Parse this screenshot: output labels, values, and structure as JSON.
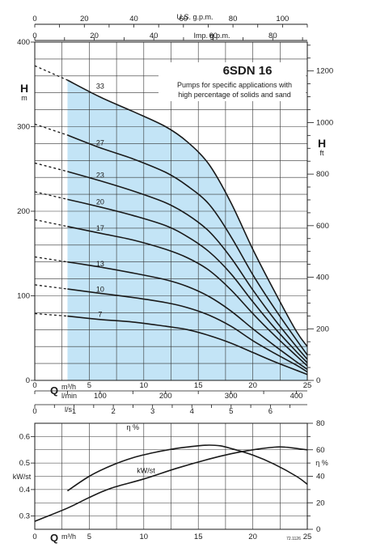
{
  "chart_data": [
    {
      "type": "line",
      "title": "6SDN 16",
      "subtitle_lines": [
        "Pumps for specific applications with",
        "high percentage of solids and sand"
      ],
      "left_axis": {
        "label": "H",
        "unit": "m",
        "range": [
          0,
          400
        ],
        "ticks": [
          0,
          100,
          200,
          300,
          400
        ]
      },
      "right_axis": {
        "label": "H",
        "unit": "ft",
        "range": [
          0,
          1312
        ],
        "ticks": [
          0,
          200,
          400,
          600,
          800,
          1000,
          1200
        ]
      },
      "x_axis": {
        "label": "Q",
        "unit": "m³/h",
        "range": [
          0,
          25
        ],
        "ticks": [
          0,
          5,
          10,
          15,
          20,
          25
        ]
      },
      "top_axis_usgpm": {
        "label": "U.S. g.p.m.",
        "range": [
          0,
          110
        ],
        "ticks": [
          0,
          20,
          40,
          60,
          80,
          100
        ]
      },
      "top_axis_impgpm": {
        "label": "Imp. g.p.m.",
        "range": [
          0,
          91.6
        ],
        "ticks": [
          0,
          20,
          40,
          60,
          80
        ]
      },
      "bottom_axis_lmin": {
        "unit": "l/min",
        "range": [
          0,
          416.7
        ],
        "ticks": [
          0,
          100,
          200,
          300,
          400
        ]
      },
      "bottom_axis_ls": {
        "unit": "l/s",
        "range": [
          0,
          6.94
        ],
        "ticks": [
          0,
          1,
          2,
          3,
          4,
          5,
          6
        ]
      },
      "operating_range": [
        3,
        25
      ],
      "series": [
        {
          "name": "33",
          "label_at": [
            6,
            343
          ],
          "dashed": [
            [
              0,
              372
            ],
            [
              3,
              355
            ]
          ],
          "points": [
            [
              3,
              355
            ],
            [
              6,
              335
            ],
            [
              9,
              318
            ],
            [
              12,
              300
            ],
            [
              14,
              282
            ],
            [
              16,
              255
            ],
            [
              18,
              210
            ],
            [
              20,
              155
            ],
            [
              22,
              105
            ],
            [
              24,
              58
            ],
            [
              25,
              40
            ]
          ]
        },
        {
          "name": "27",
          "label_at": [
            6,
            276
          ],
          "dashed": [
            [
              0,
              303
            ],
            [
              3,
              290
            ]
          ],
          "points": [
            [
              3,
              290
            ],
            [
              6,
              275
            ],
            [
              9,
              262
            ],
            [
              12,
              246
            ],
            [
              14,
              230
            ],
            [
              16,
              208
            ],
            [
              18,
              170
            ],
            [
              20,
              125
            ],
            [
              22,
              85
            ],
            [
              24,
              48
            ],
            [
              25,
              30
            ]
          ]
        },
        {
          "name": "23",
          "label_at": [
            6,
            238
          ],
          "dashed": [
            [
              0,
              257
            ],
            [
              3,
              247
            ]
          ],
          "points": [
            [
              3,
              247
            ],
            [
              6,
              236
            ],
            [
              9,
              224
            ],
            [
              12,
              210
            ],
            [
              14,
              196
            ],
            [
              16,
              176
            ],
            [
              18,
              145
            ],
            [
              20,
              107
            ],
            [
              22,
              72
            ],
            [
              24,
              40
            ],
            [
              25,
              25
            ]
          ]
        },
        {
          "name": "20",
          "label_at": [
            6,
            206
          ],
          "dashed": [
            [
              0,
              223
            ],
            [
              3,
              214
            ]
          ],
          "points": [
            [
              3,
              214
            ],
            [
              6,
              205
            ],
            [
              9,
              195
            ],
            [
              12,
              183
            ],
            [
              14,
              170
            ],
            [
              16,
              152
            ],
            [
              18,
              126
            ],
            [
              20,
              93
            ],
            [
              22,
              62
            ],
            [
              24,
              34
            ],
            [
              25,
              21
            ]
          ]
        },
        {
          "name": "17",
          "label_at": [
            6,
            175
          ],
          "dashed": [
            [
              0,
              190
            ],
            [
              3,
              182
            ]
          ],
          "points": [
            [
              3,
              182
            ],
            [
              6,
              174
            ],
            [
              9,
              166
            ],
            [
              12,
              155
            ],
            [
              14,
              145
            ],
            [
              16,
              130
            ],
            [
              18,
              107
            ],
            [
              20,
              79
            ],
            [
              22,
              53
            ],
            [
              24,
              29
            ],
            [
              25,
              17
            ]
          ]
        },
        {
          "name": "13",
          "label_at": [
            6,
            133
          ],
          "dashed": [
            [
              0,
              146
            ],
            [
              3,
              140
            ]
          ],
          "points": [
            [
              3,
              140
            ],
            [
              6,
              134
            ],
            [
              9,
              127
            ],
            [
              12,
              119
            ],
            [
              14,
              111
            ],
            [
              16,
              99
            ],
            [
              18,
              82
            ],
            [
              20,
              61
            ],
            [
              22,
              41
            ],
            [
              24,
              22
            ],
            [
              25,
              13
            ]
          ]
        },
        {
          "name": "10",
          "label_at": [
            6,
            103
          ],
          "dashed": [
            [
              0,
              113
            ],
            [
              3,
              108
            ]
          ],
          "points": [
            [
              3,
              108
            ],
            [
              6,
              103
            ],
            [
              9,
              98
            ],
            [
              12,
              92
            ],
            [
              14,
              86
            ],
            [
              16,
              77
            ],
            [
              18,
              64
            ],
            [
              20,
              47
            ],
            [
              22,
              32
            ],
            [
              24,
              18
            ],
            [
              25,
              10
            ]
          ]
        },
        {
          "name": "7",
          "label_at": [
            6,
            73
          ],
          "dashed": [
            [
              0,
              79
            ],
            [
              3,
              76
            ]
          ],
          "points": [
            [
              3,
              76
            ],
            [
              6,
              72
            ],
            [
              9,
              69
            ],
            [
              12,
              64
            ],
            [
              14,
              60
            ],
            [
              16,
              53
            ],
            [
              18,
              44
            ],
            [
              20,
              33
            ],
            [
              22,
              22
            ],
            [
              24,
              12
            ],
            [
              25,
              7
            ]
          ]
        }
      ]
    },
    {
      "type": "line",
      "x_axis": {
        "label": "Q",
        "unit": "m³/h",
        "range": [
          0,
          25
        ],
        "ticks": [
          0,
          5,
          10,
          15,
          20,
          25
        ]
      },
      "left_axis": {
        "label": "kW/st",
        "range": [
          0.25,
          0.65
        ],
        "ticks": [
          0.3,
          0.4,
          0.5,
          0.6
        ]
      },
      "right_axis": {
        "label": "η %",
        "range": [
          0,
          80
        ],
        "ticks": [
          0,
          20,
          40,
          60,
          80
        ]
      },
      "code": "72.1126",
      "series": [
        {
          "name": "η %",
          "axis": "right",
          "label_at": [
            9,
            0.625
          ],
          "points": [
            [
              3,
              29
            ],
            [
              5,
              40
            ],
            [
              7,
              48
            ],
            [
              9,
              54
            ],
            [
              11,
              58
            ],
            [
              13,
              61
            ],
            [
              15,
              63
            ],
            [
              16,
              63.5
            ],
            [
              17,
              63
            ],
            [
              18,
              61
            ],
            [
              20,
              56
            ],
            [
              22,
              49
            ],
            [
              24,
              40
            ],
            [
              25,
              34
            ]
          ]
        },
        {
          "name": "kW/st",
          "axis": "left",
          "label_at": [
            10.2,
            0.462
          ],
          "points": [
            [
              0,
              0.28
            ],
            [
              3,
              0.33
            ],
            [
              5,
              0.37
            ],
            [
              7,
              0.405
            ],
            [
              10,
              0.44
            ],
            [
              13,
              0.48
            ],
            [
              16,
              0.515
            ],
            [
              18,
              0.535
            ],
            [
              20,
              0.55
            ],
            [
              22,
              0.56
            ],
            [
              23,
              0.56
            ],
            [
              24,
              0.555
            ],
            [
              25,
              0.55
            ]
          ]
        }
      ]
    }
  ]
}
